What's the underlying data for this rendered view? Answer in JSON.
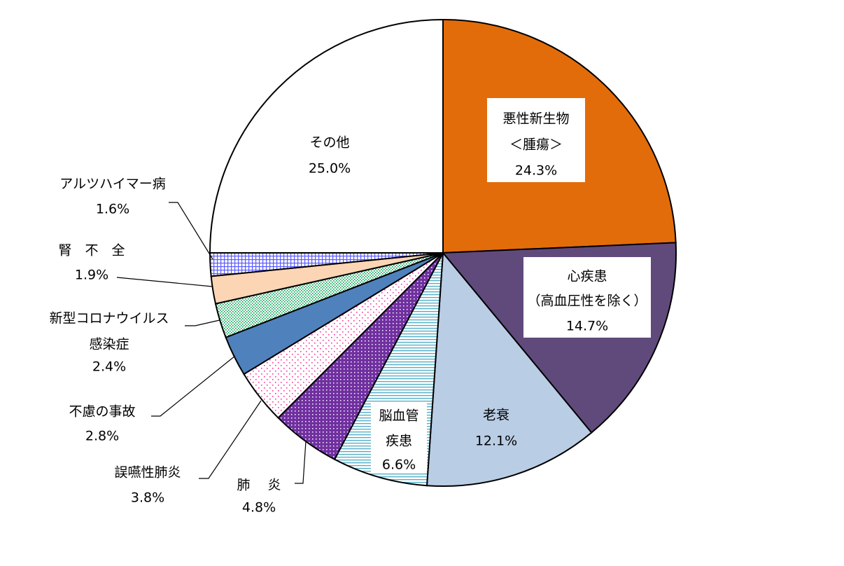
{
  "chart_data": {
    "type": "pie",
    "slices": [
      {
        "name": "悪性新生物",
        "name2": "＜腫瘍＞",
        "value": 24.3,
        "value_label": "24.3%",
        "color": "#e36c0a",
        "pattern": "solid"
      },
      {
        "name": "心疾患",
        "name2": "（高血圧性を除く）",
        "value": 14.7,
        "value_label": "14.7%",
        "color": "#604a7b",
        "pattern": "solid"
      },
      {
        "name": "老衰",
        "value": 12.1,
        "value_label": "12.1%",
        "color": "#b9cde5",
        "pattern": "solid"
      },
      {
        "name": "脳血管",
        "name2": "疾患",
        "value": 6.6,
        "value_label": "6.6%",
        "color": "#ffffff",
        "pattern": "hlines-teal"
      },
      {
        "name": "肺　 炎",
        "value": 4.8,
        "value_label": "4.8%",
        "color": "#7030a0",
        "pattern": "purple-dots"
      },
      {
        "name": "誤嚥性肺炎",
        "value": 3.8,
        "value_label": "3.8%",
        "color": "#ffffff",
        "pattern": "pink-dots"
      },
      {
        "name": "不慮の事故",
        "value": 2.8,
        "value_label": "2.8%",
        "color": "#4f81bd",
        "pattern": "solid"
      },
      {
        "name": "新型コロナウイルス",
        "name2": "感染症",
        "value": 2.4,
        "value_label": "2.4%",
        "color": "#ffffff",
        "pattern": "green-dots"
      },
      {
        "name": "腎　不　全",
        "value": 1.9,
        "value_label": "1.9%",
        "color": "#fcd5b5",
        "pattern": "solid"
      },
      {
        "name": "アルツハイマー病",
        "value": 1.6,
        "value_label": "1.6%",
        "color": "#ffffff",
        "pattern": "blue-grid"
      },
      {
        "name": "その他",
        "value": 25.0,
        "value_label": "25.0%",
        "color": "#ffffff",
        "pattern": "solid"
      }
    ],
    "start_angle": "12 o'clock",
    "direction": "clockwise"
  }
}
